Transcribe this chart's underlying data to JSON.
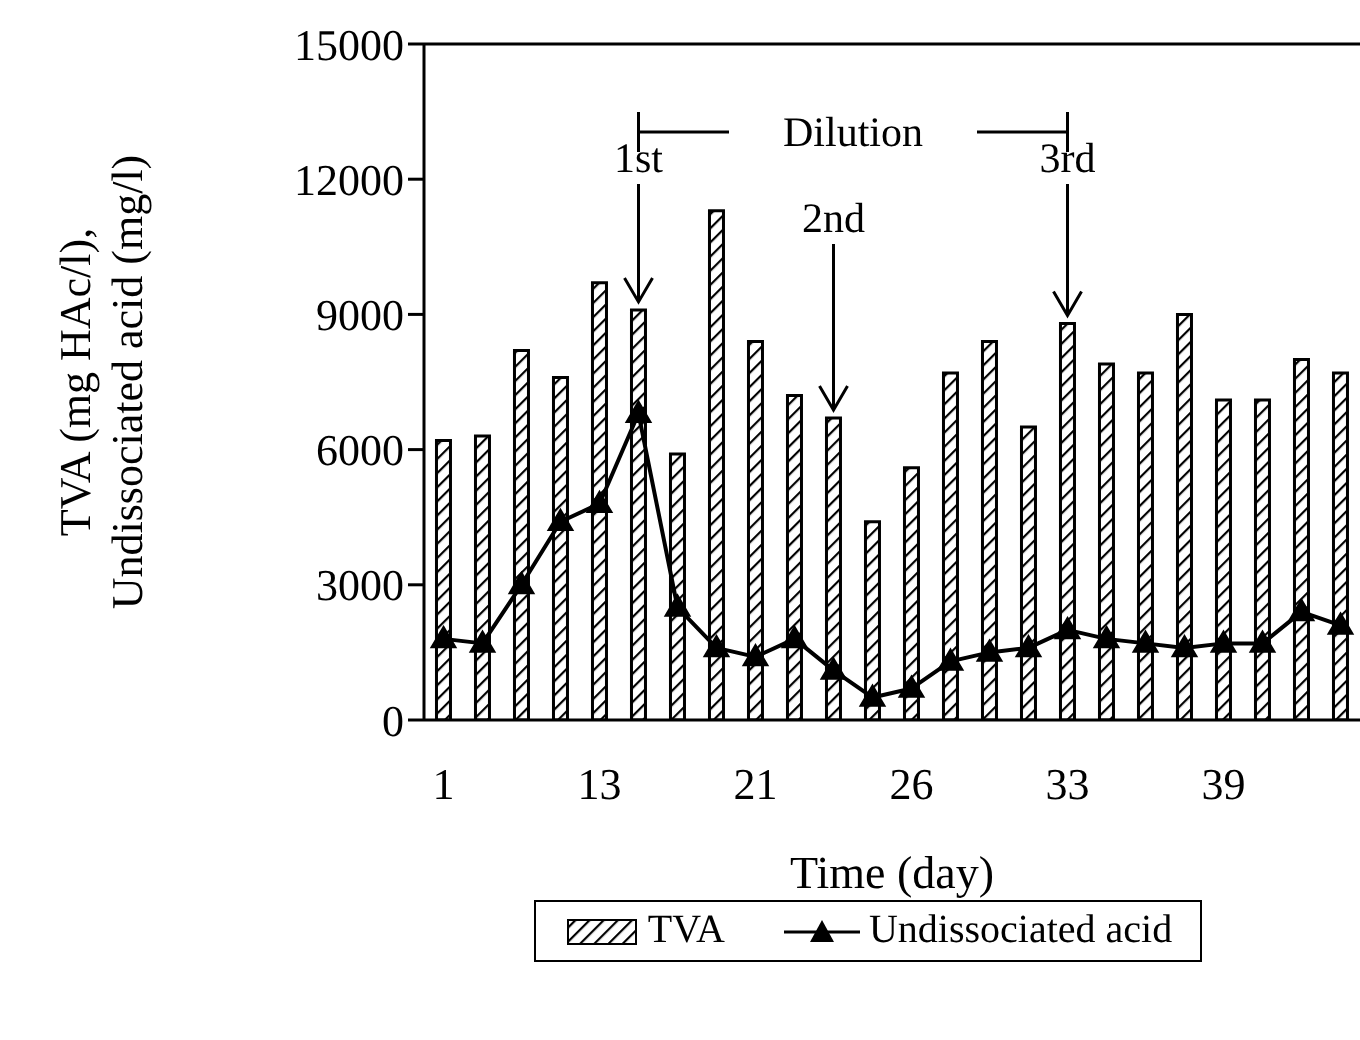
{
  "chart_data": {
    "type": "bar",
    "xlabel": "Time (day)",
    "ylabel": "TVA (mg HAc/l), Undissociated acid (mg/l)",
    "categories": [
      "1",
      null,
      null,
      null,
      "13",
      null,
      null,
      null,
      "21",
      null,
      null,
      null,
      "26",
      null,
      null,
      null,
      "33",
      null,
      null,
      null,
      "39",
      null,
      null,
      null
    ],
    "series": [
      {
        "name": "TVA",
        "color": "#000000",
        "values": [
          6200,
          6300,
          8200,
          7600,
          9700,
          9100,
          5900,
          11300,
          8400,
          7200,
          6700,
          4400,
          5600,
          7700,
          8400,
          6500,
          8800,
          7900,
          7700,
          9000,
          7100,
          7100,
          8000,
          7700
        ]
      },
      {
        "name": "Undissociated acid",
        "type": "line",
        "color": "#000000",
        "marker": "triangle",
        "values": [
          1800,
          1700,
          3000,
          4400,
          4800,
          6800,
          2500,
          1600,
          1400,
          1800,
          1100,
          500,
          700,
          1300,
          1500,
          1600,
          2000,
          1800,
          1700,
          1600,
          1700,
          1700,
          2400,
          2100
        ]
      }
    ],
    "ylim": [
      0,
      15000
    ],
    "yticks": [
      0,
      3000,
      6000,
      9000,
      12000,
      15000
    ],
    "annotations": [
      "Dilution",
      {
        "text": "1st",
        "y": 9100
      },
      {
        "text": "2nd",
        "y": 6700
      },
      {
        "text": "3rd",
        "y": 8800
      }
    ],
    "legend": "bottom",
    "grid": false
  }
}
